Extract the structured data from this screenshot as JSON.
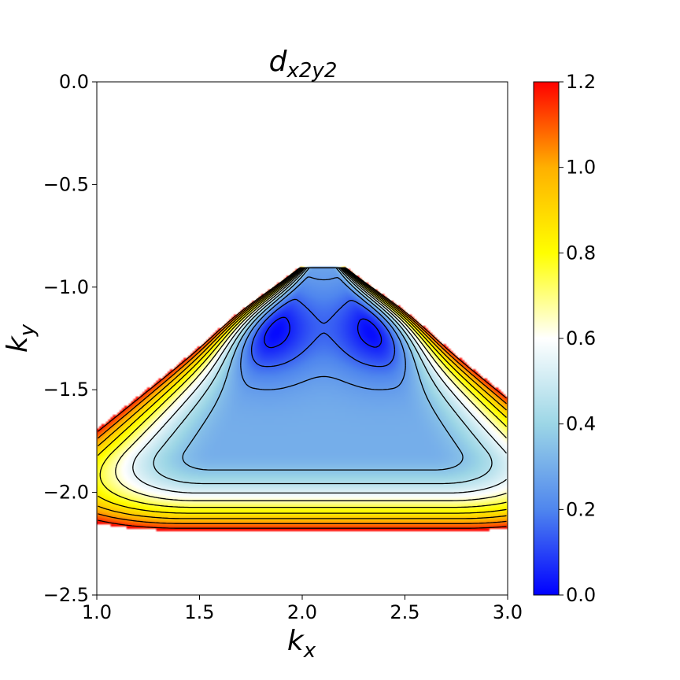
{
  "chart_data": {
    "type": "heatmap",
    "title": {
      "base": "d",
      "subscript": "x2y2"
    },
    "xlabel": {
      "base": "k",
      "subscript": "x"
    },
    "ylabel": {
      "base": "k",
      "subscript": "y"
    },
    "xlim": [
      1.0,
      3.0
    ],
    "ylim": [
      -2.5,
      0.0
    ],
    "x_ticks": [
      1.0,
      1.5,
      2.0,
      2.5,
      3.0
    ],
    "x_tick_labels": [
      "1.0",
      "1.5",
      "2.0",
      "2.5",
      "3.0"
    ],
    "y_ticks": [
      0.0,
      -0.5,
      -1.0,
      -1.5,
      -2.0,
      -2.5
    ],
    "y_tick_labels": [
      "0.0",
      "−0.5",
      "−1.0",
      "−1.5",
      "−2.0",
      "−2.5"
    ],
    "colorbar": {
      "range": [
        0.0,
        1.2
      ],
      "ticks": [
        0.0,
        0.2,
        0.4,
        0.6,
        0.8,
        1.0,
        1.2
      ],
      "tick_labels": [
        "0.0",
        "0.2",
        "0.4",
        "0.6",
        "0.8",
        "1.0",
        "1.2"
      ],
      "colormap": [
        {
          "value": 0.0,
          "color": "#0000ff"
        },
        {
          "value": 0.2,
          "color": "#4f86ee"
        },
        {
          "value": 0.4,
          "color": "#9cd6e6"
        },
        {
          "value": 0.6,
          "color": "#ffffff"
        },
        {
          "value": 0.8,
          "color": "#ffff00"
        },
        {
          "value": 1.0,
          "color": "#ffb000"
        },
        {
          "value": 1.2,
          "color": "#ff0000"
        }
      ]
    },
    "contour_levels": [
      0.05,
      0.15,
      0.25,
      0.35,
      0.45,
      0.55,
      0.65,
      0.75,
      0.85,
      0.95,
      1.05,
      1.15
    ],
    "masked_above": 1.2,
    "grid": false,
    "field_landmarks": [
      {
        "kx": 1.83,
        "ky": -1.2,
        "value": 0.03
      },
      {
        "kx": 2.38,
        "ky": -1.2,
        "value": 0.03
      },
      {
        "kx": 2.1,
        "ky": -1.3,
        "value": 0.3
      },
      {
        "kx": 2.1,
        "ky": -0.05,
        "value": 0.6
      },
      {
        "kx": 1.0,
        "ky": -1.85,
        "value": 0.6
      },
      {
        "kx": 2.1,
        "ky": -2.2,
        "value": 1.2
      }
    ]
  }
}
